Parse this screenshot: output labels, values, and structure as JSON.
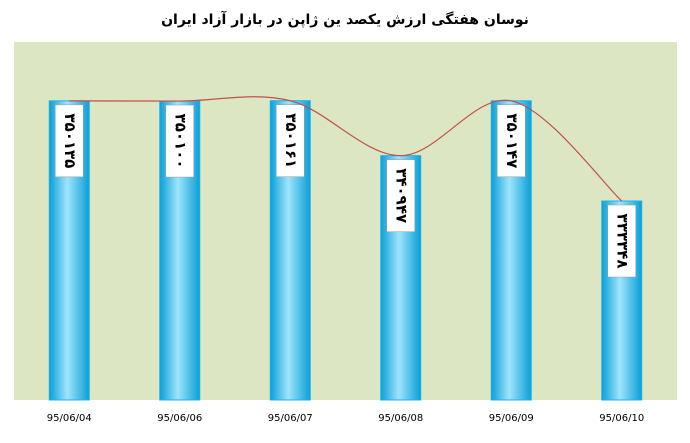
{
  "chart_data": {
    "type": "bar",
    "title": "نوسان هفتگی ارزش یکصد ین ژاپن در بازار آزاد ایران",
    "categories": [
      "95/06/04",
      "95/06/06",
      "95/06/07",
      "95/06/08",
      "95/06/09",
      "95/06/10"
    ],
    "values": [
      350135,
      350100,
      350161,
      340947,
      350147,
      333348
    ],
    "value_labels": [
      "۳۵۰۱۳۵",
      "۳۵۰۱۰۰",
      "۳۵۰۱۶۱",
      "۳۴۰۹۴۷",
      "۳۵۰۱۴۷",
      "۳۳۳۳۴۸"
    ],
    "color": "#1ab2ec",
    "line_color": "#c0504d",
    "background": "#dce6c2",
    "ylim": [
      300000,
      360000
    ]
  }
}
